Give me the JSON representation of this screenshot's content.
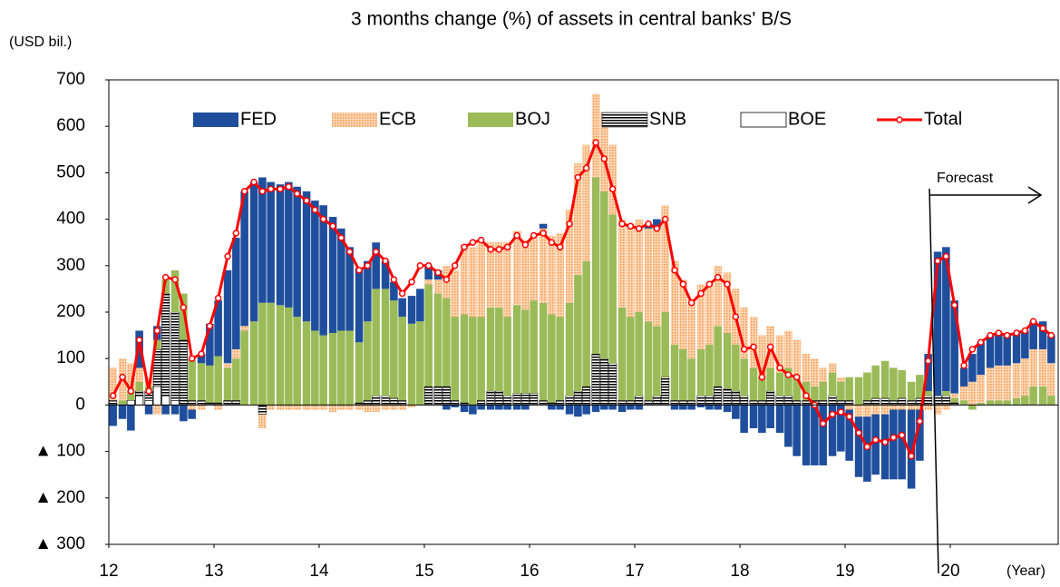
{
  "chart_data": {
    "type": "bar",
    "stacked": true,
    "title": "3 months change (%) of  assets  in central banks' B/S",
    "y_label": "(USD bil.)",
    "x_label": "(Year)",
    "annotation": "Forecast",
    "xlim": [
      12,
      21
    ],
    "xticks": [
      12,
      13,
      14,
      15,
      16,
      17,
      18,
      19,
      20
    ],
    "ylim": [
      -300,
      700
    ],
    "yticks": [
      {
        "value": -300,
        "label": "▲ 300"
      },
      {
        "value": -200,
        "label": "▲ 200"
      },
      {
        "value": -100,
        "label": "▲ 100"
      },
      0,
      100,
      200,
      300,
      400,
      500,
      600,
      700
    ],
    "x": [
      12.04,
      12.13,
      12.21,
      12.29,
      12.38,
      12.46,
      12.54,
      12.63,
      12.71,
      12.79,
      12.88,
      12.96,
      13.04,
      13.13,
      13.21,
      13.29,
      13.38,
      13.46,
      13.54,
      13.63,
      13.71,
      13.79,
      13.88,
      13.96,
      14.04,
      14.13,
      14.21,
      14.29,
      14.38,
      14.46,
      14.54,
      14.63,
      14.71,
      14.79,
      14.88,
      14.96,
      15.04,
      15.13,
      15.21,
      15.29,
      15.38,
      15.46,
      15.54,
      15.63,
      15.71,
      15.79,
      15.88,
      15.96,
      16.04,
      16.13,
      16.21,
      16.29,
      16.38,
      16.46,
      16.54,
      16.63,
      16.71,
      16.79,
      16.88,
      16.96,
      17.04,
      17.13,
      17.21,
      17.29,
      17.38,
      17.46,
      17.54,
      17.63,
      17.71,
      17.79,
      17.88,
      17.96,
      18.04,
      18.13,
      18.21,
      18.29,
      18.38,
      18.46,
      18.54,
      18.63,
      18.71,
      18.79,
      18.88,
      18.96,
      19.04,
      19.13,
      19.21,
      19.29,
      19.38,
      19.46,
      19.54,
      19.63,
      19.71,
      19.79,
      19.88,
      19.96,
      20.04,
      20.13,
      20.21,
      20.29,
      20.38,
      20.46,
      20.54,
      20.63,
      20.71,
      20.79,
      20.88,
      20.96
    ],
    "series": [
      {
        "name": "FED",
        "color": "#1f4e9c",
        "values": [
          -45,
          -30,
          -55,
          80,
          -20,
          30,
          -20,
          -20,
          -35,
          -20,
          20,
          90,
          120,
          200,
          240,
          290,
          300,
          270,
          260,
          260,
          270,
          280,
          280,
          280,
          280,
          250,
          220,
          180,
          160,
          130,
          100,
          60,
          40,
          40,
          60,
          70,
          30,
          20,
          -10,
          -5,
          -15,
          -20,
          -10,
          -10,
          -10,
          -10,
          -10,
          -10,
          0,
          10,
          -10,
          -10,
          -20,
          -25,
          -20,
          -15,
          -10,
          -10,
          -15,
          -10,
          -10,
          10,
          20,
          0,
          -10,
          -10,
          -10,
          -5,
          -10,
          -10,
          -15,
          -30,
          -60,
          -50,
          -60,
          -50,
          -60,
          -90,
          -110,
          -130,
          -130,
          -130,
          -110,
          -100,
          -110,
          -130,
          -140,
          -130,
          -140,
          -150,
          -150,
          -170,
          -110,
          80,
          310,
          310,
          200,
          40,
          60,
          70,
          70,
          70,
          70,
          65,
          60,
          60,
          60,
          60
        ]
      },
      {
        "name": "ECB",
        "color": "#f79646",
        "values": [
          70,
          90,
          60,
          30,
          20,
          -20,
          0,
          0,
          0,
          -10,
          -10,
          0,
          -10,
          10,
          20,
          10,
          0,
          -30,
          -10,
          -10,
          -10,
          -10,
          -10,
          -10,
          -10,
          -15,
          -10,
          -10,
          -10,
          -15,
          -15,
          -10,
          -10,
          -10,
          -5,
          0,
          10,
          30,
          70,
          100,
          150,
          150,
          160,
          140,
          140,
          160,
          160,
          150,
          140,
          160,
          170,
          180,
          200,
          240,
          250,
          180,
          170,
          150,
          190,
          200,
          200,
          200,
          210,
          230,
          180,
          150,
          120,
          140,
          130,
          130,
          130,
          120,
          110,
          110,
          90,
          90,
          80,
          80,
          80,
          60,
          60,
          30,
          20,
          10,
          -10,
          -25,
          -25,
          -20,
          -20,
          -10,
          -10,
          -10,
          -10,
          -10,
          -20,
          -10,
          10,
          30,
          50,
          60,
          70,
          75,
          75,
          75,
          80,
          80,
          80,
          70
        ]
      },
      {
        "name": "BOJ",
        "color": "#9bbb59",
        "values": [
          0,
          10,
          20,
          20,
          10,
          20,
          30,
          90,
          100,
          90,
          80,
          80,
          100,
          70,
          90,
          160,
          180,
          220,
          220,
          215,
          210,
          190,
          180,
          160,
          150,
          155,
          160,
          160,
          130,
          170,
          230,
          230,
          210,
          180,
          175,
          180,
          220,
          200,
          190,
          180,
          190,
          190,
          180,
          180,
          180,
          170,
          190,
          180,
          200,
          210,
          190,
          180,
          200,
          250,
          270,
          380,
          360,
          320,
          200,
          180,
          180,
          170,
          150,
          140,
          120,
          110,
          90,
          100,
          110,
          130,
          120,
          100,
          80,
          70,
          50,
          50,
          50,
          60,
          50,
          40,
          30,
          40,
          50,
          40,
          50,
          60,
          60,
          70,
          80,
          70,
          60,
          40,
          50,
          10,
          0,
          10,
          10,
          10,
          -10,
          5,
          10,
          10,
          10,
          15,
          20,
          40,
          40,
          20
        ]
      },
      {
        "name": "SNB",
        "color": "#000000",
        "values": [
          10,
          0,
          0,
          10,
          20,
          80,
          220,
          190,
          140,
          10,
          10,
          5,
          5,
          10,
          10,
          0,
          0,
          -20,
          0,
          0,
          0,
          0,
          0,
          0,
          0,
          0,
          0,
          0,
          5,
          10,
          20,
          20,
          15,
          10,
          0,
          0,
          40,
          40,
          40,
          10,
          5,
          0,
          10,
          30,
          30,
          20,
          25,
          25,
          25,
          10,
          5,
          10,
          20,
          30,
          40,
          110,
          100,
          90,
          10,
          10,
          20,
          10,
          20,
          60,
          10,
          10,
          10,
          20,
          20,
          40,
          35,
          30,
          20,
          10,
          10,
          30,
          20,
          20,
          10,
          10,
          10,
          10,
          20,
          10,
          10,
          0,
          10,
          15,
          15,
          10,
          15,
          10,
          15,
          20,
          20,
          20,
          5,
          0,
          0,
          0,
          0,
          0,
          0,
          0,
          0,
          0,
          0,
          0
        ]
      },
      {
        "name": "BOE",
        "color": "#ffffff",
        "values": [
          0,
          0,
          10,
          20,
          10,
          40,
          20,
          10,
          0,
          0,
          0,
          0,
          0,
          0,
          0,
          0,
          0,
          0,
          0,
          0,
          0,
          0,
          0,
          0,
          0,
          0,
          0,
          0,
          0,
          0,
          0,
          0,
          0,
          0,
          0,
          0,
          0,
          0,
          0,
          0,
          0,
          0,
          0,
          0,
          0,
          0,
          0,
          0,
          0,
          0,
          0,
          0,
          0,
          0,
          0,
          0,
          0,
          0,
          0,
          0,
          0,
          0,
          0,
          0,
          0,
          0,
          0,
          0,
          0,
          0,
          0,
          0,
          0,
          0,
          0,
          0,
          0,
          0,
          0,
          0,
          0,
          0,
          0,
          0,
          0,
          0,
          0,
          0,
          0,
          0,
          0,
          0,
          0,
          0,
          0,
          0,
          0,
          0,
          0,
          0,
          0,
          0,
          0,
          0,
          0,
          0,
          0,
          0
        ]
      },
      {
        "name": "Total",
        "color": "#ff0000",
        "type": "line",
        "values": [
          20,
          60,
          30,
          140,
          30,
          160,
          275,
          270,
          210,
          100,
          110,
          170,
          230,
          320,
          370,
          460,
          480,
          460,
          465,
          465,
          470,
          455,
          440,
          420,
          400,
          385,
          360,
          330,
          290,
          300,
          330,
          310,
          270,
          240,
          265,
          300,
          300,
          285,
          270,
          300,
          340,
          350,
          355,
          335,
          335,
          340,
          365,
          345,
          365,
          370,
          350,
          340,
          390,
          490,
          510,
          565,
          530,
          465,
          390,
          385,
          380,
          390,
          380,
          400,
          290,
          260,
          220,
          240,
          260,
          275,
          260,
          190,
          120,
          125,
          60,
          125,
          80,
          65,
          60,
          20,
          0,
          -40,
          -20,
          -15,
          -25,
          -60,
          -90,
          -75,
          -80,
          -70,
          -65,
          -110,
          -35,
          95,
          310,
          320,
          215,
          85,
          120,
          135,
          150,
          155,
          150,
          155,
          160,
          180,
          165,
          150
        ]
      }
    ]
  }
}
